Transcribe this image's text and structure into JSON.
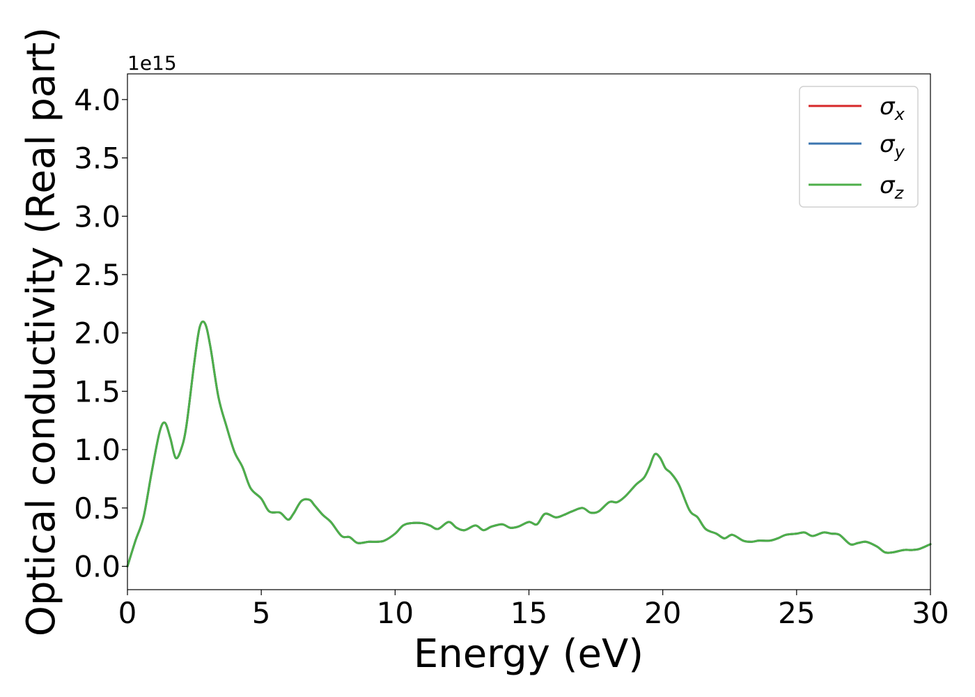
{
  "chart_data": {
    "type": "line",
    "xlabel": "Energy (eV)",
    "ylabel": "Optical conductivity (Real part)",
    "offset_label": "1e15",
    "xlim": [
      0,
      30
    ],
    "ylim": [
      -0.2,
      4.22
    ],
    "y_scale_factor": 1000000000000000.0,
    "x_ticks": [
      0,
      5,
      10,
      15,
      20,
      25,
      30
    ],
    "x_tick_labels": [
      "0",
      "5",
      "10",
      "15",
      "20",
      "25",
      "30"
    ],
    "y_ticks": [
      0.0,
      0.5,
      1.0,
      1.5,
      2.0,
      2.5,
      3.0,
      3.5,
      4.0
    ],
    "y_tick_labels": [
      "0.0",
      "0.5",
      "1.0",
      "1.5",
      "2.0",
      "2.5",
      "3.0",
      "3.5",
      "4.0"
    ],
    "grid": false,
    "legend_position": "top-right",
    "series": [
      {
        "name": "σx",
        "base": "σ",
        "sub": "x",
        "color": "#d62728",
        "x": [
          0,
          0.3,
          0.6,
          0.9,
          1.2,
          1.4,
          1.6,
          1.8,
          2.0,
          2.2,
          2.5,
          2.7,
          2.9,
          3.1,
          3.4,
          3.7,
          4.0,
          4.3,
          4.6,
          5.0,
          5.3,
          5.7,
          6.0,
          6.2,
          6.5,
          6.8,
          7.0,
          7.3,
          7.6,
          8.0,
          8.3,
          8.6,
          9.0,
          9.3,
          9.6,
          10.0,
          10.3,
          10.6,
          11.0,
          11.3,
          11.6,
          12.0,
          12.3,
          12.6,
          13.0,
          13.3,
          13.6,
          14.0,
          14.3,
          14.6,
          15.0,
          15.3,
          15.6,
          16.0,
          16.3,
          16.6,
          17.0,
          17.3,
          17.6,
          18.0,
          18.3,
          18.6,
          19.0,
          19.3,
          19.5,
          19.7,
          19.9,
          20.1,
          20.3,
          20.6,
          21.0,
          21.3,
          21.6,
          22.0,
          22.3,
          22.6,
          23.0,
          23.3,
          23.6,
          24.0,
          24.3,
          24.6,
          25.0,
          25.3,
          25.6,
          26.0,
          26.3,
          26.6,
          27.0,
          27.3,
          27.6,
          28.0,
          28.3,
          28.6,
          29.0,
          29.3,
          29.6,
          30.0
        ],
        "y": [
          0.0,
          0.22,
          0.42,
          0.8,
          1.15,
          1.23,
          1.1,
          0.93,
          1.0,
          1.2,
          1.75,
          2.05,
          2.08,
          1.88,
          1.45,
          1.2,
          0.98,
          0.85,
          0.67,
          0.58,
          0.47,
          0.46,
          0.4,
          0.45,
          0.56,
          0.57,
          0.52,
          0.44,
          0.38,
          0.26,
          0.25,
          0.2,
          0.21,
          0.21,
          0.22,
          0.28,
          0.35,
          0.37,
          0.37,
          0.35,
          0.32,
          0.38,
          0.33,
          0.31,
          0.35,
          0.31,
          0.34,
          0.36,
          0.33,
          0.34,
          0.38,
          0.36,
          0.45,
          0.42,
          0.44,
          0.47,
          0.5,
          0.46,
          0.47,
          0.55,
          0.55,
          0.6,
          0.7,
          0.76,
          0.85,
          0.96,
          0.93,
          0.84,
          0.8,
          0.7,
          0.48,
          0.42,
          0.32,
          0.28,
          0.24,
          0.27,
          0.22,
          0.21,
          0.22,
          0.22,
          0.24,
          0.27,
          0.28,
          0.29,
          0.26,
          0.29,
          0.28,
          0.27,
          0.19,
          0.2,
          0.21,
          0.17,
          0.12,
          0.12,
          0.14,
          0.14,
          0.15,
          0.19
        ]
      },
      {
        "name": "σy",
        "base": "σ",
        "sub": "y",
        "color": "#3b75af",
        "x": [
          0,
          0.3,
          0.6,
          0.9,
          1.2,
          1.4,
          1.6,
          1.8,
          2.0,
          2.2,
          2.5,
          2.7,
          2.9,
          3.1,
          3.4,
          3.7,
          4.0,
          4.3,
          4.6,
          5.0,
          5.3,
          5.7,
          6.0,
          6.2,
          6.5,
          6.8,
          7.0,
          7.3,
          7.6,
          8.0,
          8.3,
          8.6,
          9.0,
          9.3,
          9.6,
          10.0,
          10.3,
          10.6,
          11.0,
          11.3,
          11.6,
          12.0,
          12.3,
          12.6,
          13.0,
          13.3,
          13.6,
          14.0,
          14.3,
          14.6,
          15.0,
          15.3,
          15.6,
          16.0,
          16.3,
          16.6,
          17.0,
          17.3,
          17.6,
          18.0,
          18.3,
          18.6,
          19.0,
          19.3,
          19.5,
          19.7,
          19.9,
          20.1,
          20.3,
          20.6,
          21.0,
          21.3,
          21.6,
          22.0,
          22.3,
          22.6,
          23.0,
          23.3,
          23.6,
          24.0,
          24.3,
          24.6,
          25.0,
          25.3,
          25.6,
          26.0,
          26.3,
          26.6,
          27.0,
          27.3,
          27.6,
          28.0,
          28.3,
          28.6,
          29.0,
          29.3,
          29.6,
          30.0
        ],
        "y": [
          0.0,
          0.22,
          0.42,
          0.8,
          1.15,
          1.23,
          1.1,
          0.93,
          1.0,
          1.2,
          1.75,
          2.05,
          2.08,
          1.88,
          1.45,
          1.2,
          0.98,
          0.85,
          0.67,
          0.58,
          0.47,
          0.46,
          0.4,
          0.45,
          0.56,
          0.57,
          0.52,
          0.44,
          0.38,
          0.26,
          0.25,
          0.2,
          0.21,
          0.21,
          0.22,
          0.28,
          0.35,
          0.37,
          0.37,
          0.35,
          0.32,
          0.38,
          0.33,
          0.31,
          0.35,
          0.31,
          0.34,
          0.36,
          0.33,
          0.34,
          0.38,
          0.36,
          0.45,
          0.42,
          0.44,
          0.47,
          0.5,
          0.46,
          0.47,
          0.55,
          0.55,
          0.6,
          0.7,
          0.76,
          0.85,
          0.96,
          0.93,
          0.84,
          0.8,
          0.7,
          0.48,
          0.42,
          0.32,
          0.28,
          0.24,
          0.27,
          0.22,
          0.21,
          0.22,
          0.22,
          0.24,
          0.27,
          0.28,
          0.29,
          0.26,
          0.29,
          0.28,
          0.27,
          0.19,
          0.2,
          0.21,
          0.17,
          0.12,
          0.12,
          0.14,
          0.14,
          0.15,
          0.19
        ]
      },
      {
        "name": "σz",
        "base": "σ",
        "sub": "z",
        "color": "#4daf4a",
        "x": [
          0,
          0.3,
          0.6,
          0.9,
          1.2,
          1.4,
          1.6,
          1.8,
          2.0,
          2.2,
          2.5,
          2.7,
          2.9,
          3.1,
          3.4,
          3.7,
          4.0,
          4.3,
          4.6,
          5.0,
          5.3,
          5.7,
          6.0,
          6.2,
          6.5,
          6.8,
          7.0,
          7.3,
          7.6,
          8.0,
          8.3,
          8.6,
          9.0,
          9.3,
          9.6,
          10.0,
          10.3,
          10.6,
          11.0,
          11.3,
          11.6,
          12.0,
          12.3,
          12.6,
          13.0,
          13.3,
          13.6,
          14.0,
          14.3,
          14.6,
          15.0,
          15.3,
          15.6,
          16.0,
          16.3,
          16.6,
          17.0,
          17.3,
          17.6,
          18.0,
          18.3,
          18.6,
          19.0,
          19.3,
          19.5,
          19.7,
          19.9,
          20.1,
          20.3,
          20.6,
          21.0,
          21.3,
          21.6,
          22.0,
          22.3,
          22.6,
          23.0,
          23.3,
          23.6,
          24.0,
          24.3,
          24.6,
          25.0,
          25.3,
          25.6,
          26.0,
          26.3,
          26.6,
          27.0,
          27.3,
          27.6,
          28.0,
          28.3,
          28.6,
          29.0,
          29.3,
          29.6,
          30.0
        ],
        "y": [
          0.0,
          0.22,
          0.42,
          0.8,
          1.15,
          1.23,
          1.1,
          0.93,
          1.0,
          1.2,
          1.75,
          2.05,
          2.08,
          1.88,
          1.45,
          1.2,
          0.98,
          0.85,
          0.67,
          0.58,
          0.47,
          0.46,
          0.4,
          0.45,
          0.56,
          0.57,
          0.52,
          0.44,
          0.38,
          0.26,
          0.25,
          0.2,
          0.21,
          0.21,
          0.22,
          0.28,
          0.35,
          0.37,
          0.37,
          0.35,
          0.32,
          0.38,
          0.33,
          0.31,
          0.35,
          0.31,
          0.34,
          0.36,
          0.33,
          0.34,
          0.38,
          0.36,
          0.45,
          0.42,
          0.44,
          0.47,
          0.5,
          0.46,
          0.47,
          0.55,
          0.55,
          0.6,
          0.7,
          0.76,
          0.85,
          0.96,
          0.93,
          0.84,
          0.8,
          0.7,
          0.48,
          0.42,
          0.32,
          0.28,
          0.24,
          0.27,
          0.22,
          0.21,
          0.22,
          0.22,
          0.24,
          0.27,
          0.28,
          0.29,
          0.26,
          0.29,
          0.28,
          0.27,
          0.19,
          0.2,
          0.21,
          0.17,
          0.12,
          0.12,
          0.14,
          0.14,
          0.15,
          0.19
        ]
      }
    ]
  }
}
